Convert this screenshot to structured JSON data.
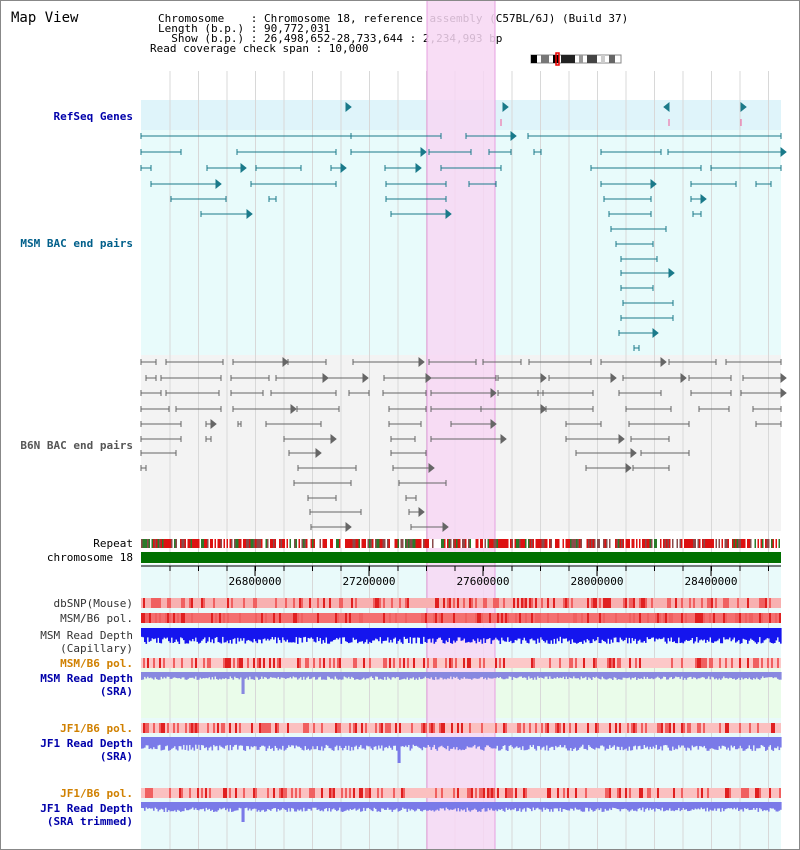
{
  "header": {
    "title": "Map View",
    "info": [
      "Chromosome    : Chromosome 18, reference assembly (C57BL/6J) (Build 37)",
      "Length (b.p.) : 90,772,031",
      "  Show (b.p.) : 26,498,652-28,733,644 : 2,234,993 bp",
      "Read coverage check span : 10,000"
    ]
  },
  "tracks": {
    "refseq": "RefSeq Genes",
    "msm_bac": "MSM BAC end pairs",
    "b6n_bac": "B6N BAC end pairs",
    "repeat": "Repeat",
    "chromosome": "chromosome 18",
    "dbsnp": "dbSNP(Mouse)",
    "msm_b6_pol_1": "MSM/B6 pol.",
    "msm_depth_cap_1": "MSM Read Depth",
    "msm_depth_cap_2": "(Capillary)",
    "msm_b6_pol_2": "MSM/B6 pol.",
    "msm_depth_sra_1": "MSM Read Depth",
    "msm_depth_sra_2": "(SRA)",
    "jf1_pol_1": "JF1/B6 pol.",
    "jf1_depth_sra_1": "JF1 Read Depth",
    "jf1_depth_sra_2": "(SRA)",
    "jf1_pol_2": "JF1/B6 pol.",
    "jf1_depth_trim_1": "JF1 Read Depth",
    "jf1_depth_trim_2": "(SRA trimmed)"
  },
  "axis": {
    "ticks": [
      "26800000",
      "27200000",
      "27600000",
      "28000000",
      "28400000"
    ]
  },
  "colors": {
    "gene": "#1a7a8a",
    "pair": "#666666",
    "highlight": "#f7d7f3",
    "chrom_bar": "#007000",
    "depth_blue": "#1515ee",
    "depth_light": "#7a7ae8",
    "label_blue": "#0000aa",
    "label_orange": "#d08000",
    "label_teal": "#005f8a"
  }
}
